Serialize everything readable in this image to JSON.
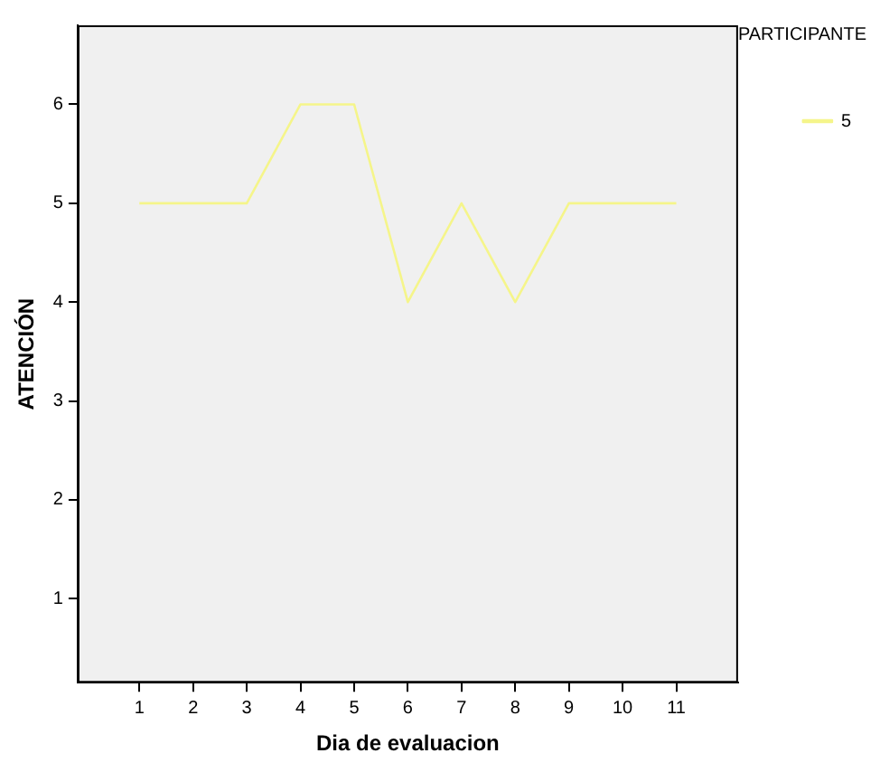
{
  "chart_data": {
    "type": "line",
    "xlabel": "Dia de evaluacion",
    "ylabel": "ATENCIÓN",
    "legend_title": "PARTICIPANTE",
    "legend": "top right",
    "grid": false,
    "marker": "none",
    "line_style": "solid",
    "x": [
      1,
      2,
      3,
      4,
      5,
      6,
      7,
      8,
      9,
      10,
      11
    ],
    "xlim": [
      -0.15,
      12.15
    ],
    "xticks": [
      1,
      2,
      3,
      4,
      5,
      6,
      7,
      8,
      9,
      10,
      11
    ],
    "ylim": [
      0.15,
      6.8
    ],
    "yticks": [
      1,
      2,
      3,
      4,
      5,
      6
    ],
    "series": [
      {
        "name": "5",
        "color": "#f5f58a",
        "values": [
          5,
          5,
          5,
          6,
          6,
          4,
          5,
          4,
          5,
          5,
          5
        ]
      }
    ]
  }
}
